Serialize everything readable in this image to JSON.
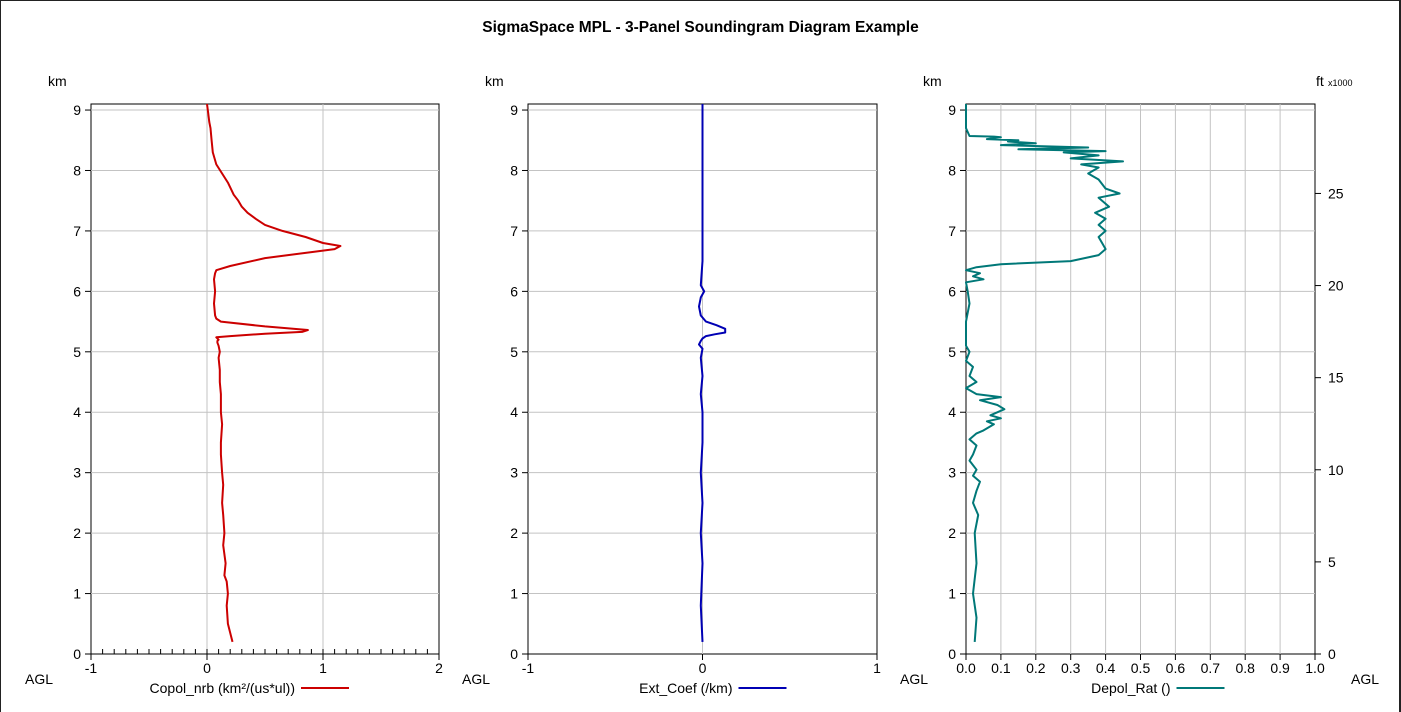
{
  "title": "SigmaSpace MPL - 3-Panel Soundingram Diagram Example",
  "colors": {
    "copol": "#cc0000",
    "ext": "#0000b4",
    "depol": "#007878",
    "grid": "#c3c3c3",
    "frame": "#000000"
  },
  "chart_data": [
    {
      "type": "line",
      "ylabel": "km",
      "bottom_label": "AGL",
      "ylim": [
        0,
        9.1
      ],
      "yticks": [
        "0",
        "1",
        "2",
        "3",
        "4",
        "5",
        "6",
        "7",
        "8",
        "9"
      ],
      "xlim": [
        -1,
        2
      ],
      "xticks": [
        "-1",
        "0",
        "1",
        "2"
      ],
      "grid": true,
      "legend": "below",
      "series": [
        {
          "name": "Copol_nrb (km²/(us*ul))",
          "x": [
            0.22,
            0.18,
            0.17,
            0.18,
            0.17,
            0.15,
            0.16,
            0.14,
            0.15,
            0.14,
            0.13,
            0.14,
            0.13,
            0.12,
            0.12,
            0.13,
            0.12,
            0.12,
            0.11,
            0.11,
            0.1,
            0.11,
            0.1,
            0.09,
            0.09,
            0.1,
            0.09,
            0.08,
            0.2,
            0.5,
            0.82,
            0.87,
            0.5,
            0.12,
            0.08,
            0.07,
            0.06,
            0.07,
            0.06,
            0.07,
            0.08,
            0.2,
            0.5,
            0.9,
            1.1,
            1.15,
            1.0,
            0.85,
            0.65,
            0.5,
            0.42,
            0.35,
            0.3,
            0.27,
            0.23,
            0.18,
            0.13,
            0.08,
            0.05,
            0.04,
            0.03,
            0.02,
            0.01,
            0.0
          ],
          "y": [
            0.2,
            0.5,
            0.8,
            1.0,
            1.2,
            1.3,
            1.5,
            1.8,
            2.0,
            2.3,
            2.5,
            2.8,
            3.0,
            3.3,
            3.5,
            3.8,
            4.0,
            4.3,
            4.5,
            4.7,
            4.9,
            5.0,
            5.1,
            5.15,
            5.18,
            5.2,
            5.22,
            5.24,
            5.26,
            5.3,
            5.33,
            5.36,
            5.42,
            5.5,
            5.55,
            5.6,
            5.8,
            6.0,
            6.2,
            6.3,
            6.35,
            6.42,
            6.55,
            6.65,
            6.7,
            6.75,
            6.8,
            6.9,
            7.0,
            7.1,
            7.2,
            7.3,
            7.4,
            7.5,
            7.6,
            7.8,
            7.95,
            8.1,
            8.3,
            8.5,
            8.7,
            8.8,
            8.95,
            9.1
          ]
        }
      ]
    },
    {
      "type": "line",
      "ylabel": "km",
      "bottom_label": "AGL",
      "ylim": [
        0,
        9.1
      ],
      "yticks": [
        "0",
        "1",
        "2",
        "3",
        "4",
        "5",
        "6",
        "7",
        "8",
        "9"
      ],
      "xlim": [
        -1,
        1
      ],
      "xticks": [
        "-1",
        "0",
        "1"
      ],
      "grid": true,
      "legend": "below",
      "series": [
        {
          "name": "Ext_Coef (/km)",
          "x": [
            0.0,
            -0.01,
            0.0,
            -0.01,
            0.0,
            -0.01,
            0.0,
            0.0,
            -0.01,
            0.0,
            -0.01,
            0.0,
            -0.02,
            -0.01,
            0.0,
            0.02,
            0.07,
            0.13,
            0.13,
            0.08,
            0.02,
            -0.01,
            -0.02,
            -0.01,
            0.01,
            -0.01,
            0.0,
            0.0,
            0.0,
            0.0
          ],
          "y": [
            0.2,
            0.8,
            1.5,
            2.0,
            2.5,
            3.0,
            3.5,
            4.0,
            4.3,
            4.6,
            4.9,
            5.05,
            5.12,
            5.18,
            5.22,
            5.26,
            5.29,
            5.32,
            5.38,
            5.44,
            5.5,
            5.6,
            5.75,
            5.9,
            6.0,
            6.1,
            6.5,
            7.0,
            8.0,
            9.1
          ]
        }
      ]
    },
    {
      "type": "line",
      "ylabel": "km",
      "y2label": "ft",
      "y2unit": "x1000",
      "bottom_label": "AGL",
      "ylim": [
        0,
        9.1
      ],
      "yticks": [
        "0",
        "1",
        "2",
        "3",
        "4",
        "5",
        "6",
        "7",
        "8",
        "9"
      ],
      "y2ticks": [
        "0",
        "5",
        "10",
        "15",
        "20",
        "25"
      ],
      "xlim": [
        0,
        1
      ],
      "xticks": [
        "0.0",
        "0.1",
        "0.2",
        "0.3",
        "0.4",
        "0.5",
        "0.6",
        "0.7",
        "0.8",
        "0.9",
        "1.0"
      ],
      "grid": true,
      "legend": "below",
      "series": [
        {
          "name": "Depol_Rat ()",
          "x": [
            0.025,
            0.03,
            0.02,
            0.03,
            0.025,
            0.035,
            0.02,
            0.03,
            0.04,
            0.02,
            0.03,
            0.01,
            0.02,
            0.03,
            0.01,
            0.03,
            0.05,
            0.08,
            0.06,
            0.1,
            0.07,
            0.11,
            0.09,
            0.04,
            0.1,
            0.03,
            0.0,
            0.03,
            0.01,
            0.02,
            0.0,
            0.01,
            0.0,
            0.0,
            0.0,
            0.01,
            0.005,
            0.0,
            0.05,
            0.02,
            0.04,
            0.0,
            0.03,
            0.1,
            0.3,
            0.38,
            0.4,
            0.39,
            0.38,
            0.4,
            0.38,
            0.4,
            0.37,
            0.41,
            0.38,
            0.44,
            0.4,
            0.38,
            0.35,
            0.38,
            0.33,
            0.45,
            0.3,
            0.38,
            0.28,
            0.4,
            0.15,
            0.35,
            0.1,
            0.2,
            0.12,
            0.15,
            0.06,
            0.1,
            0.08,
            0.01,
            0.0,
            0.0
          ],
          "y": [
            0.2,
            0.6,
            1.0,
            1.5,
            2.0,
            2.3,
            2.5,
            2.7,
            2.85,
            2.95,
            3.05,
            3.2,
            3.3,
            3.45,
            3.55,
            3.65,
            3.7,
            3.8,
            3.85,
            3.9,
            3.95,
            4.05,
            4.12,
            4.2,
            4.25,
            4.3,
            4.4,
            4.5,
            4.6,
            4.75,
            4.85,
            5.0,
            5.1,
            5.3,
            5.5,
            5.8,
            6.0,
            6.15,
            6.2,
            6.25,
            6.3,
            6.35,
            6.4,
            6.45,
            6.5,
            6.6,
            6.7,
            6.8,
            6.9,
            7.0,
            7.1,
            7.2,
            7.3,
            7.4,
            7.55,
            7.62,
            7.7,
            7.85,
            7.95,
            8.05,
            8.1,
            8.15,
            8.2,
            8.25,
            8.3,
            8.32,
            8.35,
            8.38,
            8.42,
            8.45,
            8.48,
            8.5,
            8.52,
            8.55,
            8.56,
            8.57,
            8.7,
            9.1
          ]
        }
      ]
    }
  ]
}
